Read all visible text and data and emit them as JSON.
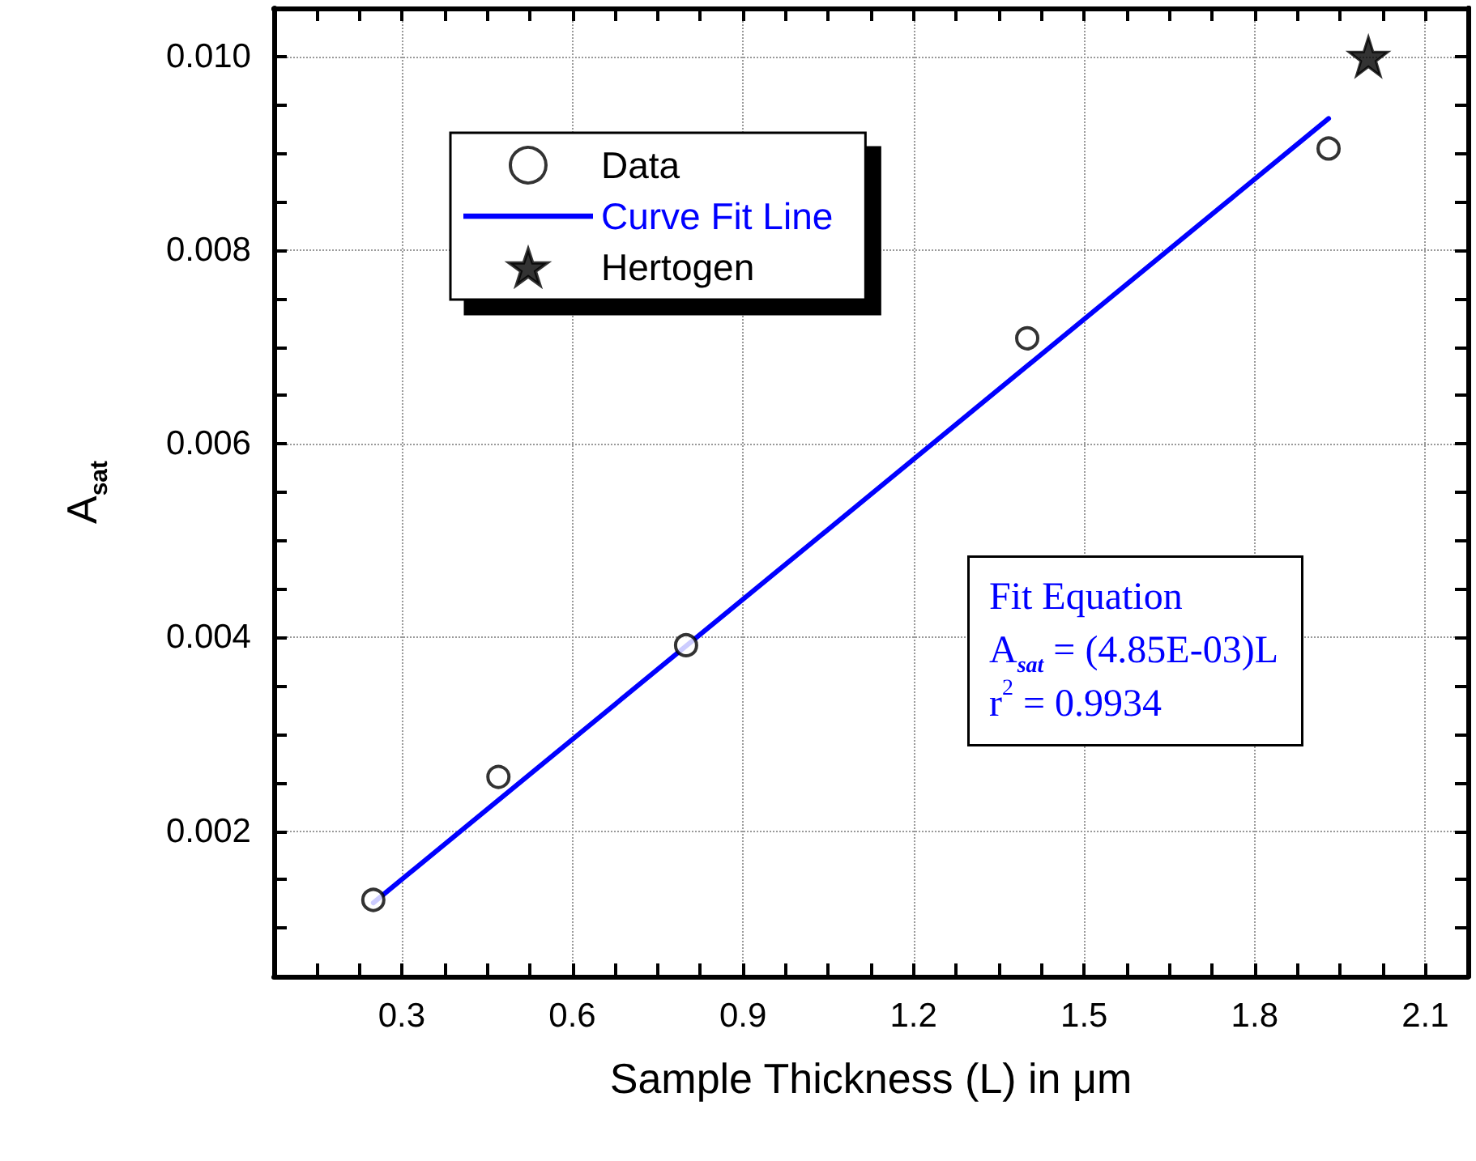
{
  "chart_data": {
    "type": "scatter",
    "xlabel": "Sample Thickness (L) in μm",
    "ylabel": "A$_{sat}$",
    "xlim": [
      0.075,
      2.175
    ],
    "xticks": [
      {
        "value": 0.15,
        "label": null
      },
      {
        "value": 0.225,
        "label": null
      },
      0.3,
      {
        "value": 0.375,
        "label": null
      },
      {
        "value": 0.45,
        "label": null
      },
      {
        "value": 0.525,
        "label": null
      },
      0.6,
      {
        "value": 0.675,
        "label": null
      },
      {
        "value": 0.75,
        "label": null
      },
      {
        "value": 0.825,
        "label": null
      },
      0.9,
      {
        "value": 0.975,
        "label": null
      },
      {
        "value": 1.05,
        "label": null
      },
      {
        "value": 1.125,
        "label": null
      },
      1.2,
      {
        "value": 1.275,
        "label": null
      },
      {
        "value": 1.35,
        "label": null
      },
      {
        "value": 1.425,
        "label": null
      },
      1.5,
      {
        "value": 1.575,
        "label": null
      },
      {
        "value": 1.65,
        "label": null
      },
      {
        "value": 1.725,
        "label": null
      },
      1.8,
      {
        "value": 1.875,
        "label": null
      },
      {
        "value": 1.95,
        "label": null
      },
      {
        "value": 2.025,
        "label": null
      },
      2.1
    ],
    "ylim": [
      0.0005,
      0.0105
    ],
    "yticks": [
      {
        "value": 0.001,
        "label": null
      },
      {
        "value": 0.0015,
        "label": null
      },
      0.002,
      {
        "value": 0.0025,
        "label": null
      },
      {
        "value": 0.003,
        "label": null
      },
      {
        "value": 0.0035,
        "label": null
      },
      0.004,
      {
        "value": 0.0045,
        "label": null
      },
      {
        "value": 0.005,
        "label": null
      },
      {
        "value": 0.0055,
        "label": null
      },
      0.006,
      {
        "value": 0.0065,
        "label": null
      },
      {
        "value": 0.007,
        "label": null
      },
      {
        "value": 0.0075,
        "label": null
      },
      0.008,
      {
        "value": 0.0085,
        "label": null
      },
      {
        "value": 0.009,
        "label": null
      },
      {
        "value": 0.0095,
        "label": null
      },
      {
        "value": 0.01,
        "label": "0.010"
      }
    ],
    "grid": true,
    "legend": "top left",
    "series": [
      {
        "name": "Data",
        "type": "scatter",
        "marker": "circle",
        "color": "#000000",
        "x": [
          0.25,
          0.47,
          0.8,
          1.4,
          1.93
        ],
        "values": [
          0.00129,
          0.00256,
          0.00392,
          0.00709,
          0.00905
        ]
      },
      {
        "name": "Curve Fit Line",
        "type": "line",
        "marker": "none",
        "line_style": "solid",
        "color": "#0000ff",
        "x": [
          0.25,
          1.93
        ],
        "values": [
          0.00126,
          0.00936
        ]
      },
      {
        "name": "Hertogen",
        "type": "scatter",
        "marker": "star",
        "color": "#000000",
        "x": [
          2.0
        ],
        "values": [
          0.01
        ]
      }
    ],
    "annotations": [
      "Fit Equation",
      "A$_{sat}$ = (4.85E-03)L",
      "r$^{2}$ = 0.9934"
    ]
  }
}
